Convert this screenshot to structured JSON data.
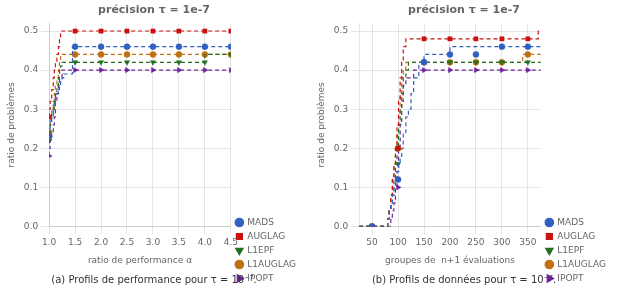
{
  "chart_data": [
    {
      "type": "step",
      "title": "précision τ = 1e-7",
      "xlabel": "ratio de performance α",
      "ylabel": "ratio de problèmes",
      "caption": "(a) Profils de performance pour τ = 10⁻⁷.",
      "xlim": [
        1,
        4.5
      ],
      "ylim": [
        0,
        0.52
      ],
      "xticks": [
        {
          "value": 1,
          "label": "1.0"
        },
        1.5,
        {
          "value": 2,
          "label": "2.0"
        },
        2.5,
        {
          "value": 3,
          "label": "3.0"
        },
        3.5,
        {
          "value": 4,
          "label": "4.0"
        },
        4.5
      ],
      "yticks": [
        {
          "value": 0,
          "label": "0.0"
        },
        0.1,
        0.2,
        0.3,
        0.4,
        0.5
      ],
      "grid": true,
      "legend": "lower right",
      "marker_x": [
        1.0,
        1.5,
        2.0,
        2.5,
        3.0,
        3.5,
        4.0,
        4.5
      ],
      "series": [
        {
          "name": "MADS",
          "color": "#3060C0",
          "marker": "circle",
          "line_style": "dashed",
          "x": [
            1.0,
            1.02,
            1.05,
            1.08,
            1.1,
            1.12,
            1.15,
            1.18,
            1.2,
            1.22,
            1.25,
            1.28,
            1.3,
            1.35,
            1.4,
            1.45,
            1.5,
            2.0,
            2.5,
            3.0,
            3.5,
            4.0,
            4.5
          ],
          "values": [
            0.23,
            0.25,
            0.27,
            0.29,
            0.31,
            0.32,
            0.33,
            0.34,
            0.35,
            0.36,
            0.37,
            0.38,
            0.39,
            0.39,
            0.39,
            0.39,
            0.46,
            0.46,
            0.46,
            0.46,
            0.46,
            0.46,
            0.46
          ],
          "marker_values": [
            0.23,
            0.46,
            0.46,
            0.46,
            0.46,
            0.46,
            0.46,
            0.46
          ]
        },
        {
          "name": "AUGLAG",
          "color": "#CC1010",
          "marker": "square",
          "line_style": "dashed",
          "x": [
            1.0,
            1.02,
            1.05,
            1.08,
            1.1,
            1.12,
            1.15,
            1.18,
            1.2,
            1.22,
            1.25,
            1.28,
            1.3,
            1.35,
            1.4,
            2.0,
            2.5,
            3.0,
            3.5,
            4.0,
            4.5
          ],
          "values": [
            0.28,
            0.3,
            0.32,
            0.35,
            0.38,
            0.4,
            0.42,
            0.44,
            0.46,
            0.48,
            0.5,
            0.5,
            0.5,
            0.5,
            0.5,
            0.5,
            0.5,
            0.5,
            0.5,
            0.5,
            0.5
          ],
          "marker_values": [
            0.28,
            0.5,
            0.5,
            0.5,
            0.5,
            0.5,
            0.5,
            0.5
          ]
        },
        {
          "name": "L1EPF",
          "color": "#207020",
          "marker": "triangle_down",
          "line_style": "dashed",
          "x": [
            1.0,
            1.02,
            1.05,
            1.08,
            1.1,
            1.12,
            1.15,
            1.18,
            1.2,
            1.22,
            1.25,
            1.28,
            1.3,
            1.35,
            1.4,
            1.45,
            1.5,
            2.0,
            2.5,
            3.0,
            3.5,
            4.0,
            4.5
          ],
          "values": [
            0.22,
            0.24,
            0.26,
            0.28,
            0.3,
            0.32,
            0.34,
            0.36,
            0.38,
            0.4,
            0.41,
            0.42,
            0.42,
            0.42,
            0.42,
            0.42,
            0.42,
            0.42,
            0.42,
            0.42,
            0.42,
            0.42,
            0.44
          ],
          "marker_values": [
            0.22,
            0.42,
            0.42,
            0.42,
            0.42,
            0.42,
            0.42,
            0.44
          ]
        },
        {
          "name": "L1AUGLAG",
          "color": "#C07010",
          "marker": "circle",
          "line_style": "dashed",
          "x": [
            1.0,
            1.02,
            1.05,
            1.08,
            1.1,
            1.12,
            1.15,
            1.18,
            1.2,
            1.22,
            1.25,
            1.28,
            1.3,
            1.35,
            1.4,
            1.45,
            2.0,
            2.5,
            3.0,
            3.5,
            4.0,
            4.5
          ],
          "values": [
            0.24,
            0.26,
            0.28,
            0.3,
            0.32,
            0.34,
            0.36,
            0.38,
            0.4,
            0.42,
            0.44,
            0.44,
            0.44,
            0.44,
            0.44,
            0.44,
            0.44,
            0.44,
            0.44,
            0.44,
            0.44,
            0.44
          ],
          "marker_values": [
            0.24,
            0.44,
            0.44,
            0.44,
            0.44,
            0.44,
            0.44,
            0.44
          ]
        },
        {
          "name": "IPOPT",
          "color": "#7020A0",
          "marker": "triangle_right",
          "line_style": "dashed",
          "x": [
            1.0,
            1.02,
            1.05,
            1.08,
            1.1,
            1.12,
            1.15,
            1.18,
            1.2,
            1.25,
            1.3,
            1.35,
            1.4,
            2.0,
            2.5,
            3.0,
            3.5,
            4.0,
            4.5
          ],
          "values": [
            0.18,
            0.2,
            0.22,
            0.24,
            0.26,
            0.28,
            0.32,
            0.34,
            0.36,
            0.38,
            0.4,
            0.4,
            0.4,
            0.4,
            0.4,
            0.4,
            0.4,
            0.4,
            0.4
          ],
          "marker_values": [
            0.18,
            0.4,
            0.4,
            0.4,
            0.4,
            0.4,
            0.4,
            0.4
          ]
        }
      ]
    },
    {
      "type": "step",
      "title": "précision τ = 1e-7",
      "xlabel": "groupes de  n+1 évaluations",
      "ylabel": "ratio de problèmes",
      "caption": "(b) Profils de données pour τ = 10⁻⁷.",
      "xlim": [
        25,
        375
      ],
      "ylim": [
        0,
        0.52
      ],
      "xticks": [
        50,
        100,
        150,
        200,
        250,
        300,
        350
      ],
      "yticks": [
        {
          "value": 0,
          "label": "0.0"
        },
        0.1,
        0.2,
        0.3,
        0.4,
        0.5
      ],
      "grid": true,
      "legend": "lower right",
      "marker_x": [
        50,
        100,
        150,
        200,
        250,
        300,
        350
      ],
      "series": [
        {
          "name": "MADS",
          "color": "#3060C0",
          "marker": "circle",
          "line_style": "dashed",
          "x": [
            25,
            60,
            75,
            80,
            83,
            86,
            89,
            92,
            95,
            98,
            101,
            104,
            107,
            110,
            115,
            120,
            125,
            130,
            140,
            150,
            160,
            175,
            200,
            265,
            270,
            300,
            350,
            375
          ],
          "values": [
            0.0,
            0.0,
            0.0,
            0.0,
            0.02,
            0.04,
            0.06,
            0.08,
            0.1,
            0.12,
            0.14,
            0.16,
            0.18,
            0.2,
            0.24,
            0.28,
            0.3,
            0.34,
            0.38,
            0.42,
            0.44,
            0.44,
            0.44,
            0.46,
            0.46,
            0.46,
            0.46,
            0.46
          ],
          "marker_values": [
            0.0,
            0.12,
            0.42,
            0.44,
            0.44,
            0.46,
            0.46
          ]
        },
        {
          "name": "AUGLAG",
          "color": "#CC1010",
          "marker": "square",
          "line_style": "dashed",
          "x": [
            25,
            60,
            75,
            80,
            83,
            86,
            89,
            92,
            95,
            98,
            101,
            104,
            107,
            110,
            115,
            120,
            125,
            130,
            140,
            150,
            200,
            350,
            370,
            375
          ],
          "values": [
            0.0,
            0.0,
            0.0,
            0.0,
            0.02,
            0.04,
            0.08,
            0.12,
            0.16,
            0.2,
            0.26,
            0.32,
            0.38,
            0.42,
            0.46,
            0.48,
            0.48,
            0.48,
            0.48,
            0.48,
            0.48,
            0.48,
            0.48,
            0.5
          ],
          "marker_values": [
            0.0,
            0.2,
            0.48,
            0.48,
            0.48,
            0.48,
            0.48
          ]
        },
        {
          "name": "L1EPF",
          "color": "#207020",
          "marker": "triangle_down",
          "line_style": "dashed",
          "x": [
            25,
            60,
            75,
            80,
            83,
            86,
            89,
            92,
            95,
            98,
            101,
            104,
            107,
            110,
            115,
            120,
            125,
            130,
            140,
            150,
            200,
            250,
            350,
            375
          ],
          "values": [
            0.0,
            0.0,
            0.0,
            0.0,
            0.02,
            0.04,
            0.06,
            0.08,
            0.12,
            0.16,
            0.2,
            0.26,
            0.3,
            0.34,
            0.38,
            0.4,
            0.42,
            0.42,
            0.42,
            0.42,
            0.42,
            0.42,
            0.42,
            0.42
          ],
          "marker_values": [
            0.0,
            0.16,
            0.42,
            0.42,
            0.42,
            0.42,
            0.42
          ]
        },
        {
          "name": "L1AUGLAG",
          "color": "#C07010",
          "marker": "circle",
          "line_style": "dashed",
          "x": [
            25,
            60,
            75,
            80,
            83,
            86,
            89,
            92,
            95,
            98,
            101,
            104,
            107,
            110,
            115,
            120,
            125,
            130,
            140,
            150,
            200,
            250,
            340,
            350,
            375
          ],
          "values": [
            0.0,
            0.0,
            0.0,
            0.0,
            0.02,
            0.04,
            0.08,
            0.12,
            0.16,
            0.2,
            0.24,
            0.28,
            0.34,
            0.38,
            0.4,
            0.42,
            0.42,
            0.42,
            0.42,
            0.42,
            0.42,
            0.42,
            0.42,
            0.44,
            0.44
          ],
          "marker_values": [
            0.0,
            0.2,
            0.42,
            0.42,
            0.42,
            0.42,
            0.44
          ]
        },
        {
          "name": "IPOPT",
          "color": "#7020A0",
          "marker": "triangle_right",
          "line_style": "dashed",
          "x": [
            25,
            60,
            75,
            80,
            83,
            86,
            89,
            92,
            95,
            98,
            101,
            104,
            107,
            110,
            115,
            120,
            125,
            130,
            140,
            150,
            160,
            200,
            250,
            350,
            375
          ],
          "values": [
            0.0,
            0.0,
            0.0,
            0.0,
            0.0,
            0.0,
            0.02,
            0.04,
            0.06,
            0.1,
            0.14,
            0.2,
            0.26,
            0.32,
            0.36,
            0.38,
            0.38,
            0.38,
            0.4,
            0.4,
            0.4,
            0.4,
            0.4,
            0.4,
            0.4
          ],
          "marker_values": [
            0.0,
            0.1,
            0.4,
            0.4,
            0.4,
            0.4,
            0.4
          ]
        }
      ]
    }
  ]
}
